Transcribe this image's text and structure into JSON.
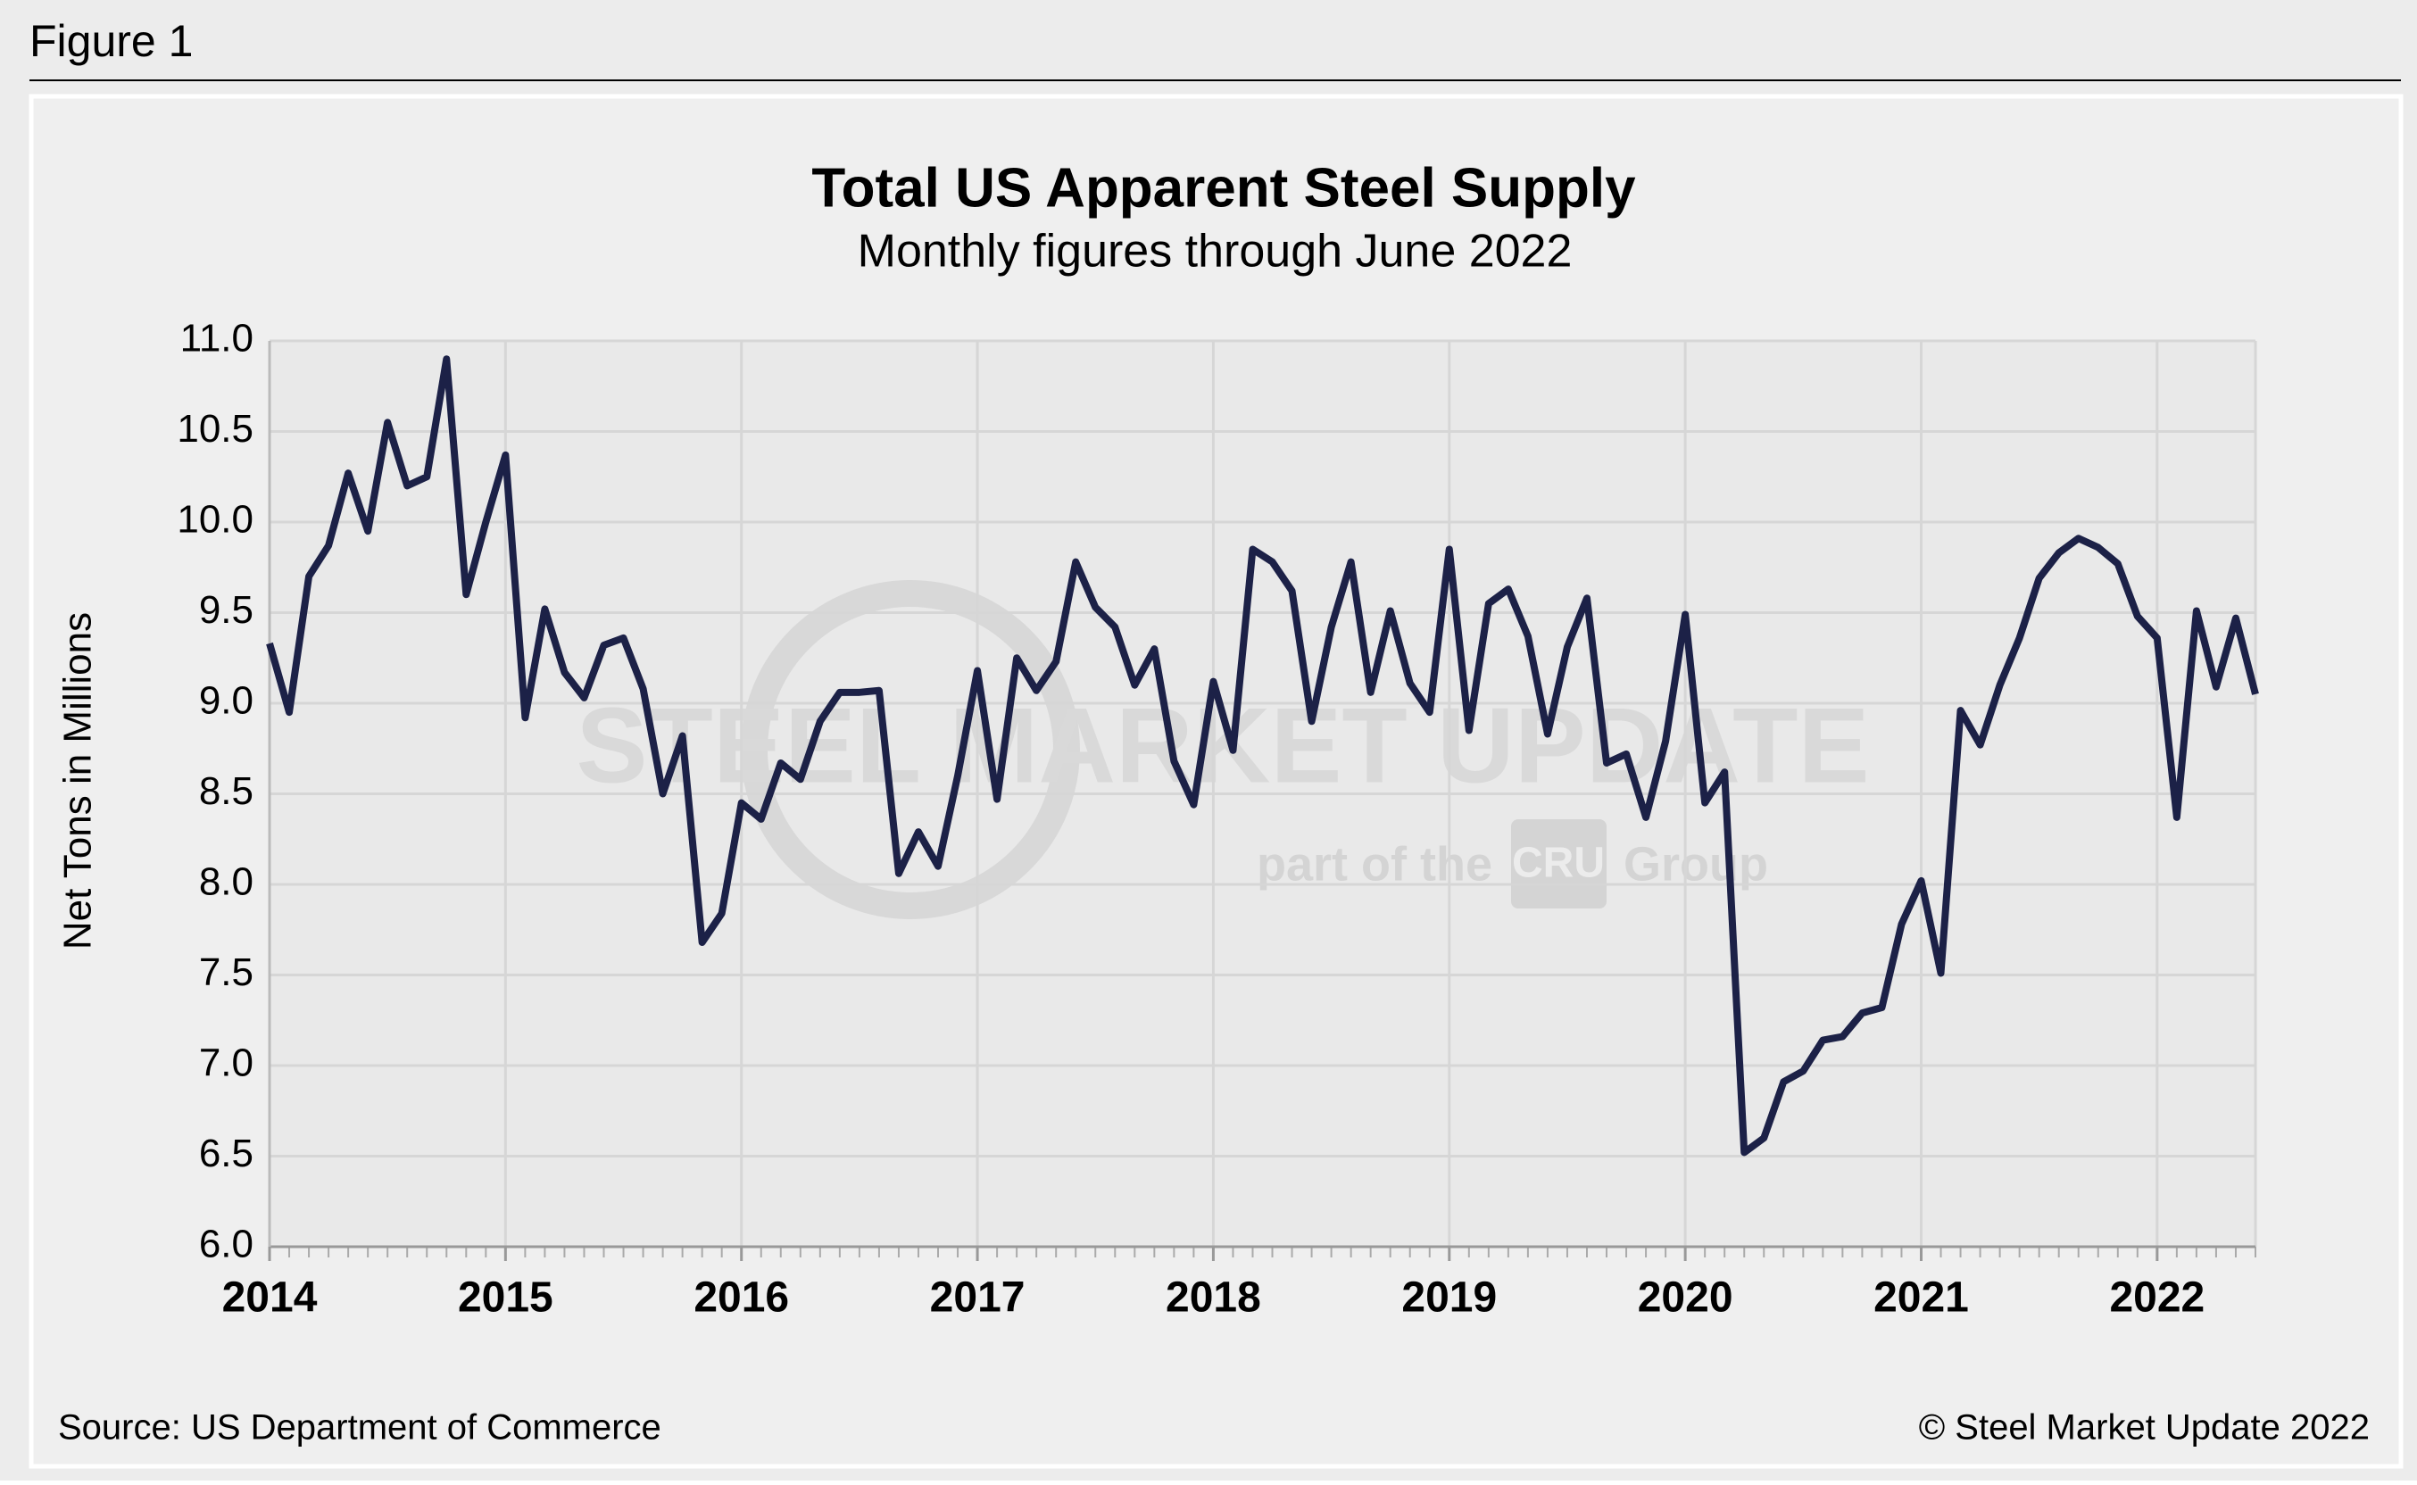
{
  "figure_label": "Figure 1",
  "chart_data": {
    "type": "line",
    "title": "Total US Apparent Steel Supply",
    "subtitle": "Monthly figures through June 2022",
    "y_label": "Net Tons in Millions",
    "source": "Source: US Department of Commerce",
    "copyright": "© Steel Market Update 2022",
    "watermark": [
      "STEEL MARKET UPDATE",
      "part of the",
      "CRU",
      "Group"
    ],
    "categories": [
      "2014",
      null,
      null,
      null,
      null,
      null,
      null,
      null,
      null,
      null,
      null,
      null,
      "2015",
      null,
      null,
      null,
      null,
      null,
      null,
      null,
      null,
      null,
      null,
      null,
      "2016",
      null,
      null,
      null,
      null,
      null,
      null,
      null,
      null,
      null,
      null,
      null,
      "2017",
      null,
      null,
      null,
      null,
      null,
      null,
      null,
      null,
      null,
      null,
      null,
      "2018",
      null,
      null,
      null,
      null,
      null,
      null,
      null,
      null,
      null,
      null,
      null,
      "2019",
      null,
      null,
      null,
      null,
      null,
      null,
      null,
      null,
      null,
      null,
      null,
      "2020",
      null,
      null,
      null,
      null,
      null,
      null,
      null,
      null,
      null,
      null,
      null,
      "2021",
      null,
      null,
      null,
      null,
      null,
      null,
      null,
      null,
      null,
      null,
      null,
      "2022",
      null,
      null,
      null,
      null,
      null
    ],
    "series": [
      {
        "name": "Total US Apparent Steel Supply",
        "color": "#1c2147",
        "values": [
          9.33,
          8.95,
          9.7,
          9.87,
          10.27,
          9.95,
          10.55,
          10.2,
          10.25,
          10.9,
          9.6,
          10.0,
          10.37,
          8.92,
          9.52,
          9.17,
          9.03,
          9.32,
          9.36,
          9.08,
          8.5,
          8.82,
          7.68,
          7.84,
          8.45,
          8.36,
          8.67,
          8.58,
          8.9,
          9.06,
          9.06,
          9.07,
          8.06,
          8.29,
          8.1,
          8.6,
          9.18,
          8.47,
          9.25,
          9.07,
          9.23,
          9.78,
          9.53,
          9.42,
          9.1,
          9.3,
          8.68,
          8.44,
          9.12,
          8.74,
          9.85,
          9.78,
          9.62,
          8.9,
          9.42,
          9.78,
          9.06,
          9.51,
          9.11,
          8.95,
          9.85,
          8.85,
          9.55,
          9.63,
          9.37,
          8.83,
          9.31,
          9.58,
          8.67,
          8.72,
          8.37,
          8.79,
          9.49,
          8.45,
          8.62,
          6.52,
          6.6,
          6.91,
          6.97,
          7.14,
          7.16,
          7.29,
          7.32,
          7.78,
          8.02,
          7.51,
          8.96,
          8.77,
          9.1,
          9.36,
          9.69,
          9.83,
          9.91,
          9.86,
          9.77,
          9.48,
          9.36,
          8.37,
          9.51,
          9.09,
          9.47,
          9.05
        ]
      }
    ],
    "ylim": [
      6,
      11
    ],
    "yticks": [
      {
        "value": 6,
        "label": "6.0"
      },
      6.5,
      {
        "value": 7,
        "label": "7.0"
      },
      7.5,
      {
        "value": 8,
        "label": "8.0"
      },
      8.5,
      {
        "value": 9,
        "label": "9.0"
      },
      9.5,
      {
        "value": 10,
        "label": "10.0"
      },
      10.5,
      {
        "value": 11,
        "label": "11.0"
      }
    ],
    "grid": true
  }
}
